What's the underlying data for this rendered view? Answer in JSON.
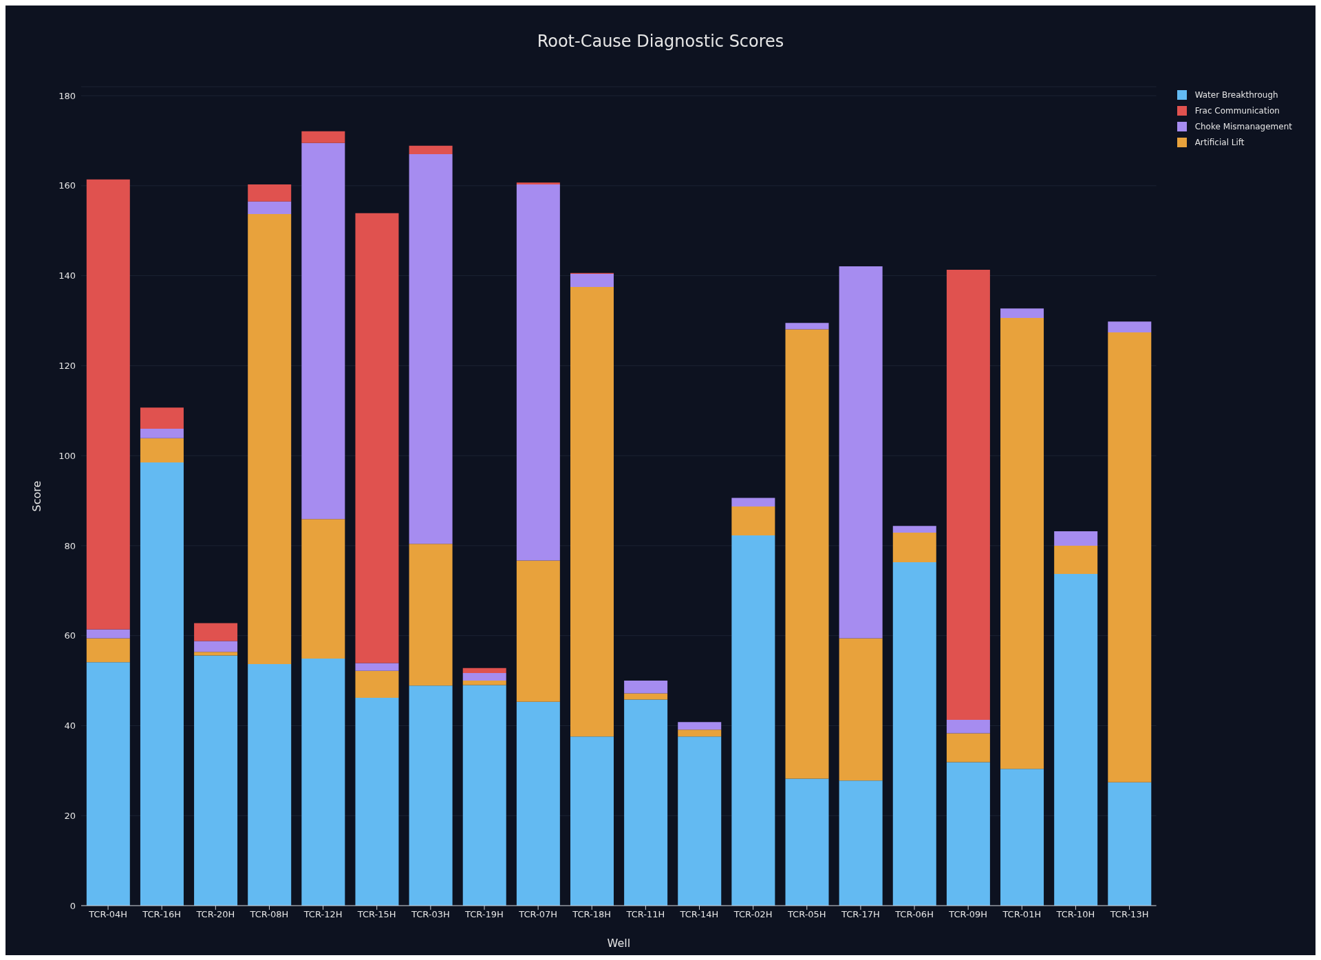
{
  "chart_data": {
    "type": "bar",
    "title": "Root-Cause Diagnostic Scores",
    "xlabel": "Well",
    "ylabel": "Score",
    "categories": [
      "TCR-04H",
      "TCR-16H",
      "TCR-20H",
      "TCR-08H",
      "TCR-12H",
      "TCR-15H",
      "TCR-03H",
      "TCR-19H",
      "TCR-07H",
      "TCR-18H",
      "TCR-11H",
      "TCR-14H",
      "TCR-02H",
      "TCR-05H",
      "TCR-17H",
      "TCR-06H",
      "TCR-09H",
      "TCR-01H",
      "TCR-10H",
      "TCR-13H"
    ],
    "stacked": true,
    "series": [
      {
        "name": "Water Breakthrough",
        "color": "#63baf2",
        "values": [
          54.1,
          98.5,
          55.6,
          53.7,
          54.9,
          46.2,
          48.9,
          49.0,
          45.3,
          37.6,
          45.8,
          37.6,
          82.3,
          28.2,
          27.8,
          76.3,
          31.9,
          30.4,
          73.7,
          27.4
        ]
      },
      {
        "name": "Artificial Lift",
        "color": "#e8a23c",
        "values": [
          5.3,
          5.4,
          0.8,
          100.0,
          31.0,
          6.0,
          31.5,
          1.0,
          31.4,
          99.9,
          1.4,
          1.5,
          6.4,
          99.9,
          31.6,
          6.6,
          6.4,
          100.2,
          6.3,
          100.0
        ]
      },
      {
        "name": "Choke Mismanagement",
        "color": "#a68cf0",
        "values": [
          2.0,
          2.1,
          2.4,
          2.8,
          83.6,
          1.7,
          86.6,
          1.7,
          83.6,
          2.9,
          2.8,
          1.7,
          1.9,
          1.4,
          82.7,
          1.5,
          3.0,
          2.1,
          3.2,
          2.4
        ]
      },
      {
        "name": "Frac Communication",
        "color": "#e0524f",
        "values": [
          100.0,
          4.7,
          4.0,
          3.8,
          2.6,
          100.0,
          1.9,
          1.1,
          0.4,
          0.2,
          null,
          null,
          null,
          null,
          null,
          null,
          100.0,
          null,
          null,
          null
        ]
      }
    ],
    "ylim": [
      0,
      182
    ],
    "yticks": [
      0,
      20,
      40,
      60,
      80,
      100,
      120,
      140,
      160,
      180
    ],
    "grid": "y",
    "legend": "top right"
  }
}
